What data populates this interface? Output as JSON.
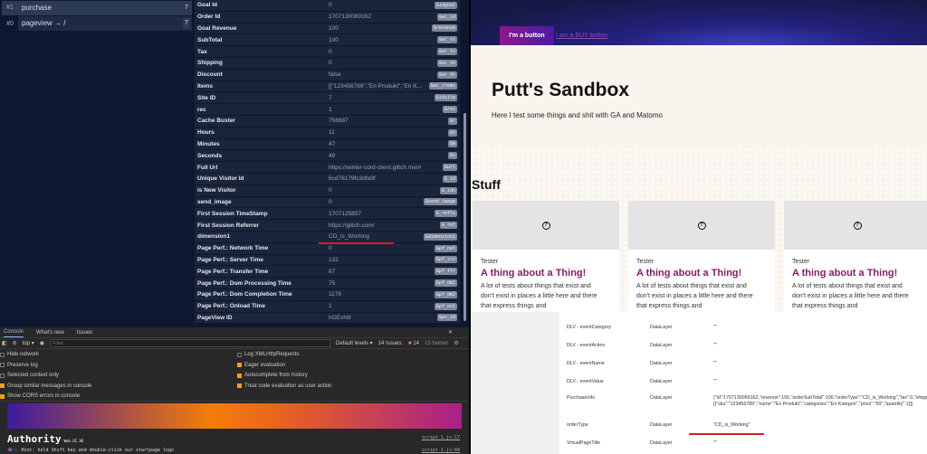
{
  "requests": [
    {
      "num": "#1",
      "label": "purchase",
      "count": "7"
    },
    {
      "num": "#0",
      "label": "pageview → /",
      "count": "7"
    }
  ],
  "params": [
    [
      "Goal Id",
      "0",
      "&idgoal"
    ],
    [
      "Order Id",
      "1707130069162",
      "&ec_id"
    ],
    [
      "Goal Revenue",
      "100",
      "&revenue"
    ],
    [
      "SubTotal",
      "100",
      "&ec_st"
    ],
    [
      "Tax",
      "0",
      "&ec_tx"
    ],
    [
      "Shipping",
      "0",
      "&ec_sh"
    ],
    [
      "Discount",
      "false",
      "&ec_dt"
    ],
    [
      "Items",
      "[[\"123456789\",\"En Produkt\",\"En K...",
      "&ec_items"
    ],
    [
      "Site ID",
      "7",
      "&idsite"
    ],
    [
      "rec",
      "1",
      "&rec"
    ],
    [
      "Cache Buster",
      "756687",
      "&r"
    ],
    [
      "Hours",
      "11",
      "&h"
    ],
    [
      "Minutes",
      "47",
      "&m"
    ],
    [
      "Seconds",
      "49",
      "&s"
    ],
    [
      "Full Url",
      "https://winter-cord-client.glitch.me/#",
      "&url"
    ],
    [
      "Unique Visitor Id",
      "6cd78179fc3dfa9f",
      "&_id"
    ],
    [
      "is New Visitor",
      "0",
      "&_idn"
    ],
    [
      "send_image",
      "0",
      "&send_image"
    ],
    [
      "First Session TimeStamp",
      "1707125857",
      "&_refts"
    ],
    [
      "First Session Referrer",
      "https://glitch.com/",
      "&_ref"
    ],
    [
      "dimension1",
      "CD_is_Working",
      "&dimension1"
    ],
    [
      "Page Perf.: Network Time",
      "0",
      "&pf_net"
    ],
    [
      "Page Perf.: Server Time",
      "132",
      "&pf_srv"
    ],
    [
      "Page Perf.: Transfer Time",
      "87",
      "&pf_tfr"
    ],
    [
      "Page Perf.: Dom Processing Time",
      "75",
      "&pf_dm1"
    ],
    [
      "Page Perf.: Dom Completion Time",
      "1176",
      "&pf_dm2"
    ],
    [
      "Page Perf.: Onload Time",
      "1",
      "&pf_onl"
    ],
    [
      "PageView ID",
      "hGExN9",
      "&pv_id"
    ]
  ],
  "devtools": {
    "tabs": [
      "Console",
      "What's new",
      "Issues"
    ],
    "context": "top ▾",
    "filter_placeholder": "Filter",
    "levels": "Default levels ▾",
    "issues": "14 Issues:",
    "issues_count": "14",
    "hidden": "15 hidden",
    "settings": [
      {
        "label": "Hide network",
        "checked": false
      },
      {
        "label": "Preserve log",
        "checked": false
      },
      {
        "label": "Selected context only",
        "checked": false
      },
      {
        "label": "Group similar messages in console",
        "checked": true
      },
      {
        "label": "Show CORS errors in console",
        "checked": true
      },
      {
        "label": "Log XMLHttpRequests",
        "checked": false
      },
      {
        "label": "Eager evaluation",
        "checked": true
      },
      {
        "label": "Autocomplete from history",
        "checked": true
      },
      {
        "label": "Treat code evaluation as user action",
        "checked": true
      }
    ],
    "authority": "Authority",
    "version": "Web.UI.V6",
    "src1": "script_1.js:17",
    "hint": "👾🌑 Hint: hold Shift key and double-click our startpage logo",
    "src2": "script_1.js:84"
  },
  "site": {
    "button": "I'm a button",
    "buy": "I am a BUY button",
    "title": "Putt's Sandbox",
    "subtitle": "Here I test some things and shit with GA and Matomo",
    "stuff": "Stuff",
    "card": {
      "author": "Tester",
      "heading": "A thing about a Thing!",
      "text": "A lot of tests about things that exist and don't exist in places a little here and there that express things and"
    }
  },
  "datalayer": [
    [
      "DLV - eventCategory",
      "DataLayer",
      "\"\""
    ],
    [
      "DLV - eventAction",
      "DataLayer",
      "\"\""
    ],
    [
      "DLV - eventName",
      "DataLayer",
      "\"\""
    ],
    [
      "DLV - eventValue",
      "DataLayer",
      "\"\""
    ],
    [
      "PurchaseInfo",
      "DataLayer",
      "{\"id\":1707130069162,\"revenue\":100,\"orderSubTotal\":100,\"orderType\":\"CD_is_Working\",\"tax\":0,\"shipping\":0,\"discount\":false,\"products\":[{\"sku\":\"123456789\",\"name\":\"En Produkt\",\"categories\":\"En Kategori\",\"price\":\"50\",\"quantity\":1}]}"
    ],
    [
      "orderType",
      "DataLayer",
      "\"CD_is_Working\""
    ],
    [
      "VirtualPageTitle",
      "DataLayer",
      "\"\""
    ]
  ]
}
